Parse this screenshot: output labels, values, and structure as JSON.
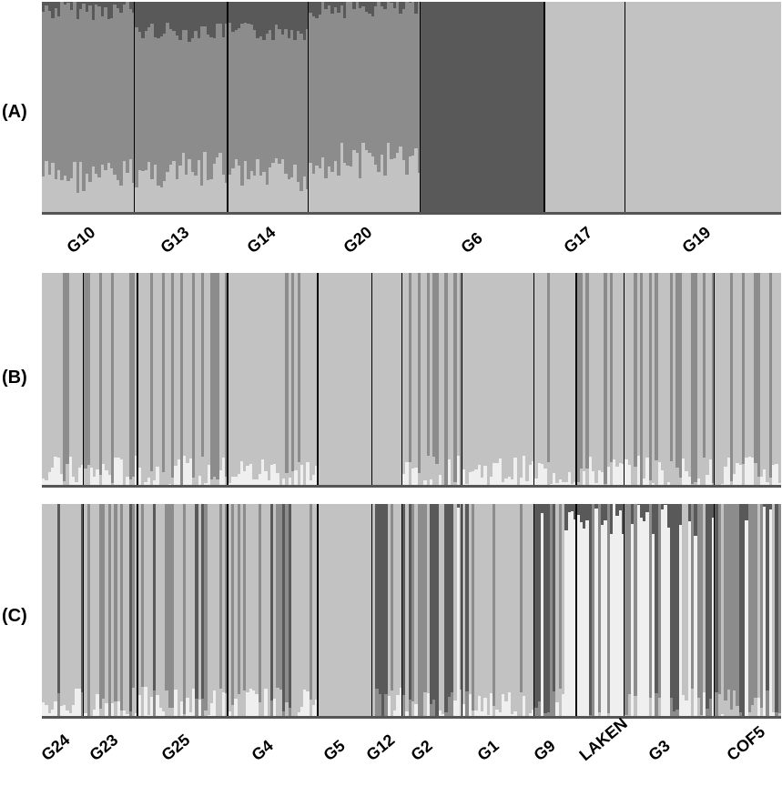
{
  "chart_data": [
    {
      "type": "bar",
      "panel_label": "(A)",
      "colors": {
        "light": "#c2c2c2",
        "mid": "#8c8c8c",
        "dark": "#595959",
        "white": "#efefef"
      },
      "groups": [
        {
          "name": "G10",
          "n": 30,
          "profile": [
            0.04,
            0.78,
            0.18,
            0.0
          ],
          "pattern": "varied"
        },
        {
          "name": "G13",
          "n": 30,
          "profile": [
            0.14,
            0.66,
            0.2,
            0.0
          ],
          "pattern": "varied"
        },
        {
          "name": "G14",
          "n": 26,
          "profile": [
            0.14,
            0.68,
            0.18,
            0.0
          ],
          "pattern": "varied"
        },
        {
          "name": "G20",
          "n": 36,
          "profile": [
            0.03,
            0.72,
            0.25,
            0.0
          ],
          "pattern": "varied"
        },
        {
          "name": "G6",
          "n": 40,
          "profile": [
            0.99,
            0.0,
            0.01,
            0.0
          ],
          "pattern": "uniform"
        },
        {
          "name": "G17",
          "n": 26,
          "profile": [
            0.0,
            0.0,
            1.0,
            0.0
          ],
          "pattern": "uniform"
        },
        {
          "name": "G19",
          "n": 50,
          "profile": [
            0.0,
            0.0,
            1.0,
            0.0
          ],
          "pattern": "uniform"
        }
      ]
    },
    {
      "type": "bar",
      "panel_label": "(B)",
      "colors": {
        "light": "#c2c2c2",
        "mid": "#8c8c8c",
        "dark": "#595959",
        "white": "#efefef"
      },
      "groups": [
        {
          "name": "G24",
          "n": 14,
          "profile": [
            0.0,
            0.2,
            0.8,
            0.0
          ],
          "pattern": "sparse"
        },
        {
          "name": "G23",
          "n": 18,
          "profile": [
            0.0,
            0.3,
            0.7,
            0.0
          ],
          "pattern": "sparse"
        },
        {
          "name": "G25",
          "n": 30,
          "profile": [
            0.0,
            0.3,
            0.7,
            0.0
          ],
          "pattern": "sparse"
        },
        {
          "name": "G4",
          "n": 30,
          "profile": [
            0.0,
            0.08,
            0.92,
            0.0
          ],
          "pattern": "sparse"
        },
        {
          "name": "G5",
          "n": 18,
          "profile": [
            0.0,
            0.0,
            1.0,
            0.0
          ],
          "pattern": "uniform"
        },
        {
          "name": "G12",
          "n": 10,
          "profile": [
            0.0,
            0.0,
            1.0,
            0.0
          ],
          "pattern": "uniform"
        },
        {
          "name": "G2",
          "n": 20,
          "profile": [
            0.0,
            0.25,
            0.75,
            0.0
          ],
          "pattern": "sparse"
        },
        {
          "name": "G1",
          "n": 24,
          "profile": [
            0.0,
            0.02,
            0.98,
            0.0
          ],
          "pattern": "sparse"
        },
        {
          "name": "G9",
          "n": 14,
          "profile": [
            0.0,
            0.1,
            0.9,
            0.0
          ],
          "pattern": "sparse"
        },
        {
          "name": "LAKEN",
          "n": 16,
          "profile": [
            0.0,
            0.2,
            0.8,
            0.0
          ],
          "pattern": "sparse"
        },
        {
          "name": "G3",
          "n": 30,
          "profile": [
            0.0,
            0.35,
            0.65,
            0.0
          ],
          "pattern": "sparse"
        },
        {
          "name": "COF5",
          "n": 22,
          "profile": [
            0.0,
            0.25,
            0.75,
            0.0
          ],
          "pattern": "sparse"
        }
      ]
    },
    {
      "type": "bar",
      "panel_label": "(C)",
      "colors": {
        "light": "#c2c2c2",
        "mid": "#8c8c8c",
        "dark": "#595959",
        "white": "#efefef"
      },
      "groups": [
        {
          "name": "G24",
          "n": 14,
          "profile": [
            0.15,
            0.25,
            0.6,
            0.0
          ],
          "pattern": "sparse"
        },
        {
          "name": "G23",
          "n": 18,
          "profile": [
            0.05,
            0.3,
            0.65,
            0.0
          ],
          "pattern": "sparse"
        },
        {
          "name": "G25",
          "n": 30,
          "profile": [
            0.1,
            0.3,
            0.6,
            0.0
          ],
          "pattern": "sparse"
        },
        {
          "name": "G4",
          "n": 30,
          "profile": [
            0.1,
            0.2,
            0.7,
            0.0
          ],
          "pattern": "sparse"
        },
        {
          "name": "G5",
          "n": 18,
          "profile": [
            0.0,
            0.0,
            1.0,
            0.0
          ],
          "pattern": "uniform"
        },
        {
          "name": "G12",
          "n": 10,
          "profile": [
            0.3,
            0.2,
            0.5,
            0.0
          ],
          "pattern": "sparse"
        },
        {
          "name": "G2",
          "n": 20,
          "profile": [
            0.35,
            0.3,
            0.3,
            0.05
          ],
          "pattern": "sparse"
        },
        {
          "name": "G1",
          "n": 24,
          "profile": [
            0.05,
            0.15,
            0.8,
            0.0
          ],
          "pattern": "sparse"
        },
        {
          "name": "G9",
          "n": 14,
          "profile": [
            0.2,
            0.2,
            0.2,
            0.4
          ],
          "pattern": "sparse"
        },
        {
          "name": "LAKEN",
          "n": 16,
          "profile": [
            0.1,
            0.2,
            0.1,
            0.6
          ],
          "pattern": "sparse"
        },
        {
          "name": "G3",
          "n": 30,
          "profile": [
            0.15,
            0.45,
            0.1,
            0.3
          ],
          "pattern": "sparse"
        },
        {
          "name": "COF5",
          "n": 22,
          "profile": [
            0.1,
            0.35,
            0.25,
            0.3
          ],
          "pattern": "sparse"
        }
      ]
    }
  ]
}
